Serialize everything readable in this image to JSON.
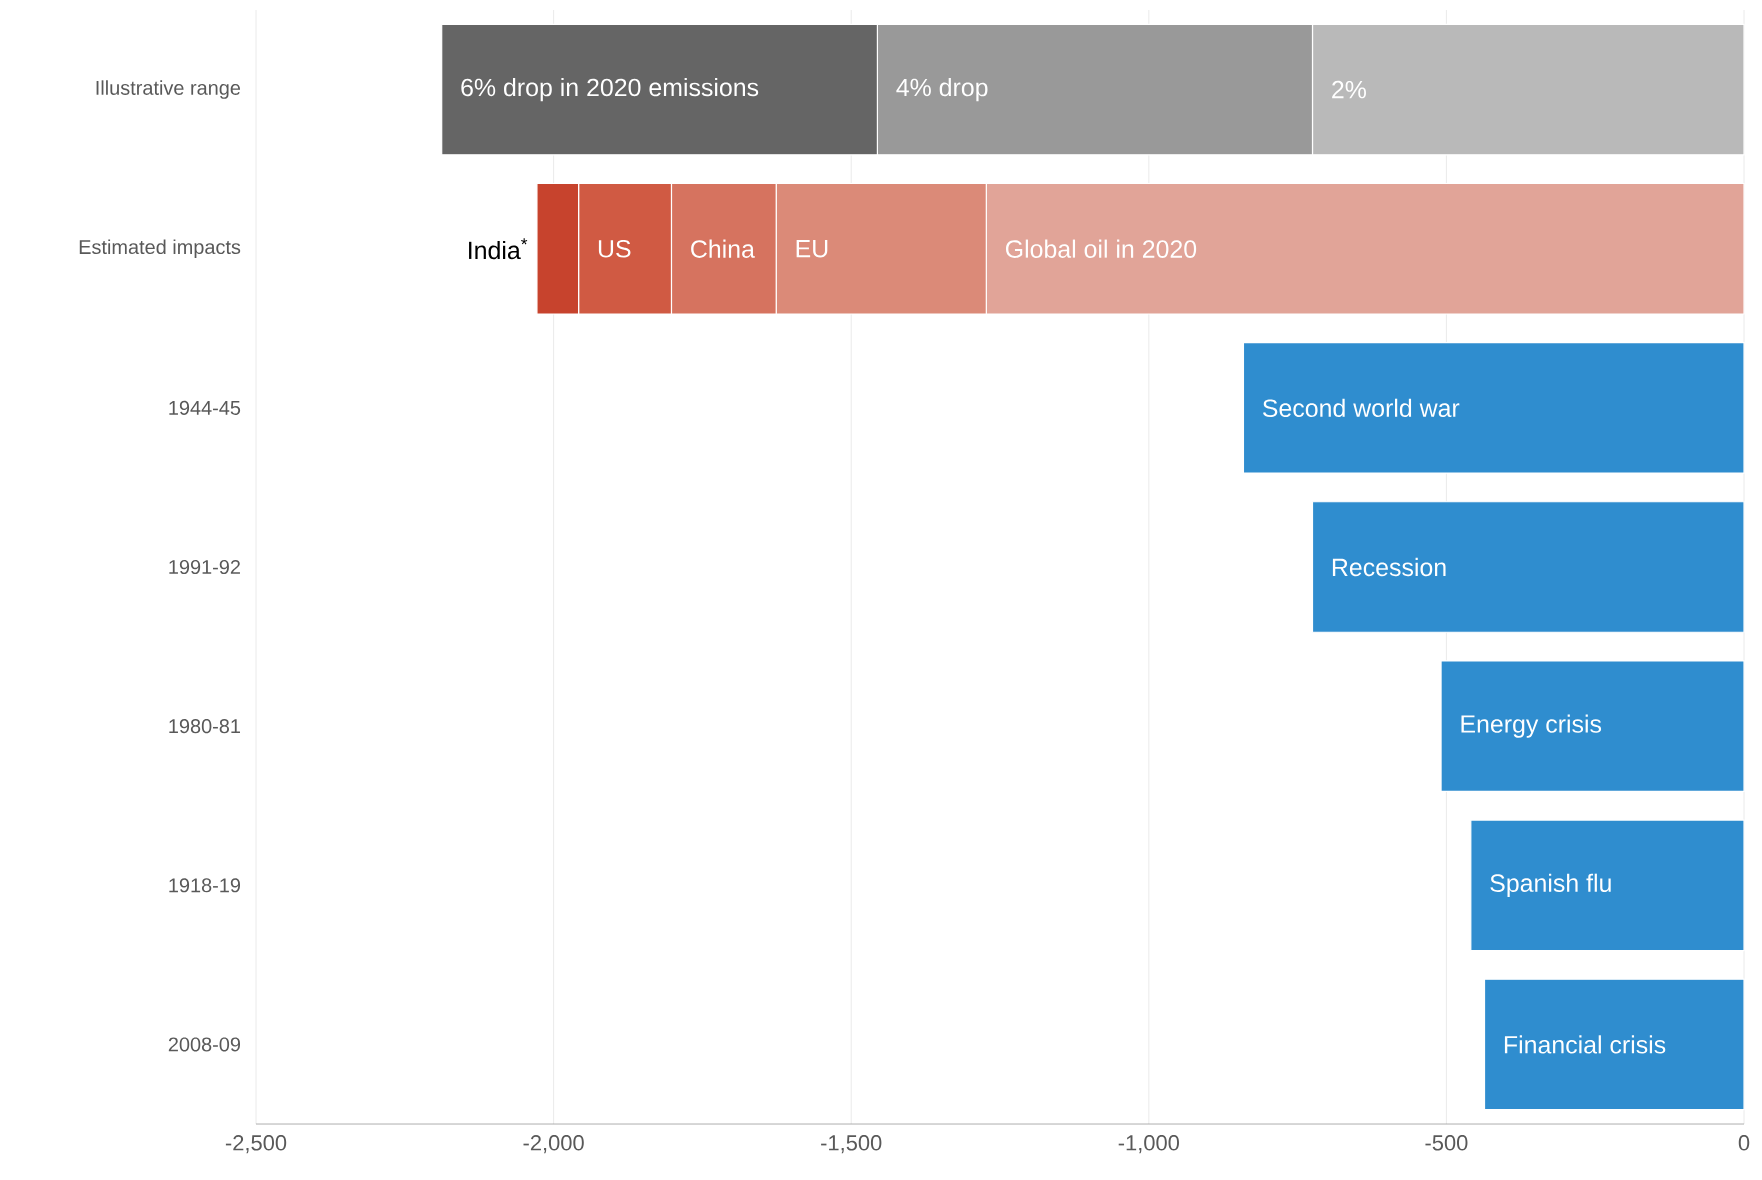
{
  "chart_data": {
    "type": "bar",
    "orientation": "horizontal",
    "stacked": true,
    "grid": "x",
    "categories": [
      "Illustrative range",
      "Estimated impacts",
      "1944-45",
      "1991-92",
      "1980-81",
      "1918-19",
      "2008-09"
    ],
    "xlim": [
      -2500,
      0
    ],
    "xticks": [
      {
        "value": -2500,
        "label": "-2,500"
      },
      {
        "value": -2000,
        "label": "-2,000"
      },
      {
        "value": -1500,
        "label": "-1,500"
      },
      {
        "value": -1000,
        "label": "-1,000"
      },
      -500,
      0
    ],
    "series": [
      {
        "name": "2%",
        "color": "#b9b9b9",
        "values": [
          -725,
          null,
          null,
          null,
          null,
          null,
          null
        ]
      },
      {
        "name": "4% drop",
        "color": "#999999",
        "values": [
          -731,
          null,
          null,
          null,
          null,
          null,
          null
        ]
      },
      {
        "name": "6% drop in 2020 emissions",
        "color": "#656565",
        "values": [
          -732,
          null,
          null,
          null,
          null,
          null,
          null
        ]
      },
      {
        "name": "Global oil in 2020",
        "color": "#e1a498",
        "values": [
          null,
          -1273,
          null,
          null,
          null,
          null,
          null
        ]
      },
      {
        "name": "EU",
        "color": "#db8a78",
        "values": [
          null,
          -353,
          null,
          null,
          null,
          null,
          null
        ]
      },
      {
        "name": "China",
        "color": "#d6735f",
        "values": [
          null,
          -176,
          null,
          null,
          null,
          null,
          null
        ]
      },
      {
        "name": "US",
        "color": "#d05a43",
        "values": [
          null,
          -156,
          null,
          null,
          null,
          null,
          null
        ]
      },
      {
        "name": "India$^{*}$",
        "color": "#c7432d",
        "values": [
          null,
          -70,
          null,
          null,
          null,
          null,
          null
        ]
      },
      {
        "name": "Second world war",
        "color": "#2f8dcf",
        "values": [
          null,
          null,
          -841,
          null,
          null,
          null,
          null
        ]
      },
      {
        "name": "Recession",
        "color": "#2f8dcf",
        "values": [
          null,
          null,
          null,
          -725,
          null,
          null,
          null
        ]
      },
      {
        "name": "Energy crisis",
        "color": "#2f8dcf",
        "values": [
          null,
          null,
          null,
          null,
          -509,
          null,
          null
        ]
      },
      {
        "name": "Spanish flu",
        "color": "#2f8dcf",
        "values": [
          null,
          null,
          null,
          null,
          null,
          -459,
          null
        ]
      },
      {
        "name": "Financial crisis",
        "color": "#2f8dcf",
        "values": [
          null,
          null,
          null,
          null,
          null,
          null,
          -436
        ]
      }
    ]
  }
}
